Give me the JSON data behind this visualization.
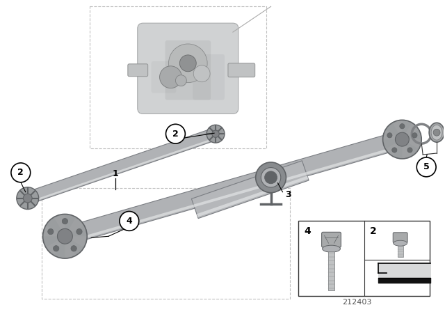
{
  "background_color": "#ffffff",
  "figure_width": 6.4,
  "figure_height": 4.48,
  "diagram_id": "212403",
  "shaft_gray": "#b0b2b5",
  "shaft_dark": "#7a7d82",
  "shaft_light": "#d0d2d5",
  "shaft_highlight": "#e8e9ea",
  "component_gray": "#9a9d9f",
  "component_dark": "#606366",
  "transfer_case_color": "#c8cacb",
  "transfer_case_edge": "#a0a2a3",
  "box_line": "#dddddd",
  "annotation_line": "#333333",
  "label_font": 9,
  "callout_font": 9,
  "parts_box_line": "#333333"
}
